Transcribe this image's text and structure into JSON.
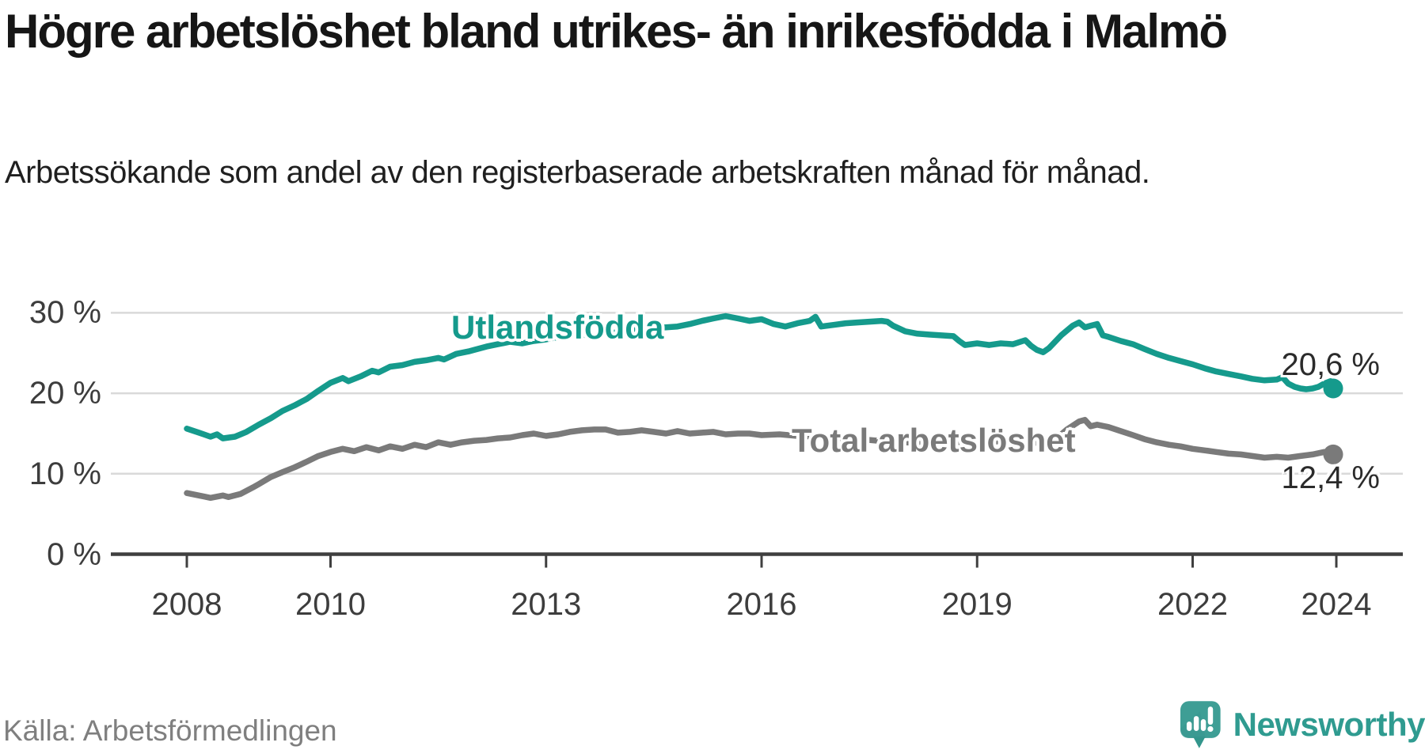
{
  "header": {
    "title": "Högre arbetslöshet bland utrikes- än inrikesfödda i Malmö",
    "subtitle": "Arbetssökande som andel av den registerbaserade arbetskraften månad för månad."
  },
  "chart_data": {
    "type": "line",
    "unit": "percent",
    "title": "Högre arbetslöshet bland utrikes- än inrikesfödda i Malmö",
    "xlabel": "",
    "ylabel": "",
    "xlim": [
      2007.5,
      2024.9
    ],
    "ylim": [
      0,
      32
    ],
    "grid": "horizontal",
    "legend_position": "inline-labels",
    "x_ticks": [
      2008,
      2010,
      2013,
      2016,
      2019,
      2022,
      2024
    ],
    "x_tick_labels": [
      "2008",
      "2010",
      "2013",
      "2016",
      "2019",
      "2022",
      "2024"
    ],
    "y_ticks": [
      0,
      10,
      20,
      30
    ],
    "y_tick_labels": [
      "0 %",
      "10 %",
      "20 %",
      "30 %"
    ],
    "colors": {
      "grid": "#d9d9d9",
      "axis": "#3f3f3f",
      "tick_text": "#3d3d3d",
      "end_label_text": "#2b2b2b"
    },
    "series": [
      {
        "name": "Utlandsfödda",
        "color": "#159a8c",
        "end_value": 20.6,
        "end_label": "20,6 %",
        "points": [
          [
            2008.0,
            15.6
          ],
          [
            2008.17,
            15.1
          ],
          [
            2008.33,
            14.6
          ],
          [
            2008.42,
            14.9
          ],
          [
            2008.5,
            14.4
          ],
          [
            2008.67,
            14.6
          ],
          [
            2008.83,
            15.2
          ],
          [
            2009.0,
            16.1
          ],
          [
            2009.17,
            16.9
          ],
          [
            2009.33,
            17.8
          ],
          [
            2009.5,
            18.5
          ],
          [
            2009.67,
            19.3
          ],
          [
            2009.83,
            20.3
          ],
          [
            2010.0,
            21.3
          ],
          [
            2010.17,
            21.9
          ],
          [
            2010.25,
            21.5
          ],
          [
            2010.42,
            22.1
          ],
          [
            2010.58,
            22.8
          ],
          [
            2010.67,
            22.6
          ],
          [
            2010.83,
            23.3
          ],
          [
            2011.0,
            23.5
          ],
          [
            2011.17,
            23.9
          ],
          [
            2011.33,
            24.1
          ],
          [
            2011.5,
            24.4
          ],
          [
            2011.58,
            24.2
          ],
          [
            2011.75,
            24.9
          ],
          [
            2011.92,
            25.2
          ],
          [
            2012.0,
            25.4
          ],
          [
            2012.17,
            25.8
          ],
          [
            2012.33,
            26.1
          ],
          [
            2012.5,
            26.4
          ],
          [
            2012.67,
            26.2
          ],
          [
            2012.83,
            26.5
          ],
          [
            2013.0,
            26.7
          ],
          [
            2013.17,
            27.0
          ],
          [
            2013.33,
            27.2
          ],
          [
            2013.5,
            27.3
          ],
          [
            2013.67,
            27.1
          ],
          [
            2013.83,
            27.4
          ],
          [
            2014.0,
            27.6
          ],
          [
            2014.17,
            27.8
          ],
          [
            2014.33,
            28.0
          ],
          [
            2014.5,
            28.1
          ],
          [
            2014.67,
            28.2
          ],
          [
            2014.83,
            28.3
          ],
          [
            2015.0,
            28.6
          ],
          [
            2015.17,
            29.0
          ],
          [
            2015.33,
            29.3
          ],
          [
            2015.5,
            29.6
          ],
          [
            2015.67,
            29.3
          ],
          [
            2015.83,
            29.0
          ],
          [
            2016.0,
            29.2
          ],
          [
            2016.17,
            28.6
          ],
          [
            2016.33,
            28.3
          ],
          [
            2016.5,
            28.7
          ],
          [
            2016.67,
            29.0
          ],
          [
            2016.75,
            29.5
          ],
          [
            2016.83,
            28.3
          ],
          [
            2017.0,
            28.5
          ],
          [
            2017.17,
            28.7
          ],
          [
            2017.33,
            28.8
          ],
          [
            2017.5,
            28.9
          ],
          [
            2017.67,
            29.0
          ],
          [
            2017.75,
            28.9
          ],
          [
            2017.83,
            28.4
          ],
          [
            2018.0,
            27.7
          ],
          [
            2018.17,
            27.4
          ],
          [
            2018.33,
            27.3
          ],
          [
            2018.5,
            27.2
          ],
          [
            2018.67,
            27.1
          ],
          [
            2018.75,
            26.5
          ],
          [
            2018.83,
            26.0
          ],
          [
            2019.0,
            26.2
          ],
          [
            2019.17,
            26.0
          ],
          [
            2019.33,
            26.2
          ],
          [
            2019.5,
            26.1
          ],
          [
            2019.67,
            26.6
          ],
          [
            2019.75,
            25.9
          ],
          [
            2019.83,
            25.4
          ],
          [
            2019.92,
            25.1
          ],
          [
            2020.0,
            25.6
          ],
          [
            2020.17,
            27.2
          ],
          [
            2020.33,
            28.4
          ],
          [
            2020.42,
            28.8
          ],
          [
            2020.5,
            28.2
          ],
          [
            2020.58,
            28.4
          ],
          [
            2020.67,
            28.6
          ],
          [
            2020.75,
            27.2
          ],
          [
            2020.83,
            27.0
          ],
          [
            2021.0,
            26.5
          ],
          [
            2021.17,
            26.1
          ],
          [
            2021.33,
            25.5
          ],
          [
            2021.5,
            24.9
          ],
          [
            2021.67,
            24.4
          ],
          [
            2021.83,
            24.0
          ],
          [
            2022.0,
            23.6
          ],
          [
            2022.17,
            23.1
          ],
          [
            2022.33,
            22.7
          ],
          [
            2022.5,
            22.4
          ],
          [
            2022.67,
            22.1
          ],
          [
            2022.83,
            21.8
          ],
          [
            2023.0,
            21.6
          ],
          [
            2023.17,
            21.7
          ],
          [
            2023.25,
            22.0
          ],
          [
            2023.33,
            21.2
          ],
          [
            2023.42,
            20.8
          ],
          [
            2023.5,
            20.6
          ],
          [
            2023.58,
            20.5
          ],
          [
            2023.67,
            20.6
          ],
          [
            2023.75,
            20.8
          ],
          [
            2023.83,
            21.2
          ],
          [
            2023.92,
            21.5
          ],
          [
            2024.0,
            20.6
          ]
        ]
      },
      {
        "name": "Total arbetslöshet",
        "color": "#7a7a7a",
        "end_value": 12.4,
        "end_label": "12,4 %",
        "points": [
          [
            2008.0,
            7.6
          ],
          [
            2008.17,
            7.3
          ],
          [
            2008.33,
            7.0
          ],
          [
            2008.5,
            7.3
          ],
          [
            2008.58,
            7.1
          ],
          [
            2008.75,
            7.5
          ],
          [
            2008.92,
            8.3
          ],
          [
            2009.0,
            8.7
          ],
          [
            2009.17,
            9.6
          ],
          [
            2009.33,
            10.2
          ],
          [
            2009.5,
            10.8
          ],
          [
            2009.67,
            11.5
          ],
          [
            2009.83,
            12.2
          ],
          [
            2010.0,
            12.7
          ],
          [
            2010.17,
            13.1
          ],
          [
            2010.33,
            12.8
          ],
          [
            2010.5,
            13.3
          ],
          [
            2010.67,
            12.9
          ],
          [
            2010.83,
            13.4
          ],
          [
            2011.0,
            13.1
          ],
          [
            2011.17,
            13.6
          ],
          [
            2011.33,
            13.3
          ],
          [
            2011.5,
            13.9
          ],
          [
            2011.67,
            13.6
          ],
          [
            2011.83,
            13.9
          ],
          [
            2012.0,
            14.1
          ],
          [
            2012.17,
            14.2
          ],
          [
            2012.33,
            14.4
          ],
          [
            2012.5,
            14.5
          ],
          [
            2012.67,
            14.8
          ],
          [
            2012.83,
            15.0
          ],
          [
            2013.0,
            14.7
          ],
          [
            2013.17,
            14.9
          ],
          [
            2013.33,
            15.2
          ],
          [
            2013.5,
            15.4
          ],
          [
            2013.67,
            15.5
          ],
          [
            2013.83,
            15.5
          ],
          [
            2014.0,
            15.1
          ],
          [
            2014.17,
            15.2
          ],
          [
            2014.33,
            15.4
          ],
          [
            2014.5,
            15.2
          ],
          [
            2014.67,
            15.0
          ],
          [
            2014.83,
            15.3
          ],
          [
            2015.0,
            15.0
          ],
          [
            2015.17,
            15.1
          ],
          [
            2015.33,
            15.2
          ],
          [
            2015.5,
            14.9
          ],
          [
            2015.67,
            15.0
          ],
          [
            2015.83,
            15.0
          ],
          [
            2016.0,
            14.8
          ],
          [
            2016.25,
            14.9
          ],
          [
            2016.5,
            14.7
          ],
          [
            2016.75,
            14.6
          ],
          [
            2017.0,
            14.4
          ],
          [
            2017.25,
            14.3
          ],
          [
            2017.5,
            14.2
          ],
          [
            2017.75,
            14.0
          ],
          [
            2018.0,
            13.9
          ],
          [
            2018.25,
            13.8
          ],
          [
            2018.5,
            13.8
          ],
          [
            2018.75,
            13.7
          ],
          [
            2019.0,
            13.9
          ],
          [
            2019.25,
            14.0
          ],
          [
            2019.5,
            14.2
          ],
          [
            2019.75,
            13.9
          ],
          [
            2019.92,
            13.8
          ],
          [
            2020.08,
            14.2
          ],
          [
            2020.25,
            15.5
          ],
          [
            2020.42,
            16.5
          ],
          [
            2020.5,
            16.7
          ],
          [
            2020.58,
            15.9
          ],
          [
            2020.67,
            16.1
          ],
          [
            2020.83,
            15.8
          ],
          [
            2021.0,
            15.3
          ],
          [
            2021.17,
            14.8
          ],
          [
            2021.33,
            14.3
          ],
          [
            2021.5,
            13.9
          ],
          [
            2021.67,
            13.6
          ],
          [
            2021.83,
            13.4
          ],
          [
            2022.0,
            13.1
          ],
          [
            2022.17,
            12.9
          ],
          [
            2022.33,
            12.7
          ],
          [
            2022.5,
            12.5
          ],
          [
            2022.67,
            12.4
          ],
          [
            2022.83,
            12.2
          ],
          [
            2023.0,
            12.0
          ],
          [
            2023.17,
            12.1
          ],
          [
            2023.33,
            12.0
          ],
          [
            2023.5,
            12.2
          ],
          [
            2023.67,
            12.4
          ],
          [
            2023.83,
            12.7
          ],
          [
            2023.92,
            12.5
          ],
          [
            2024.0,
            12.4
          ]
        ]
      }
    ]
  },
  "footer": {
    "source": "Källa: Arbetsförmedlingen",
    "logo": {
      "text": "Newsworthy",
      "icon": "newsworthy-speech-bubble-bar-chart-icon",
      "icon_color": "#3e9e95",
      "icon_tail_color": "#33968c",
      "text_color": "#2f9b90"
    }
  }
}
